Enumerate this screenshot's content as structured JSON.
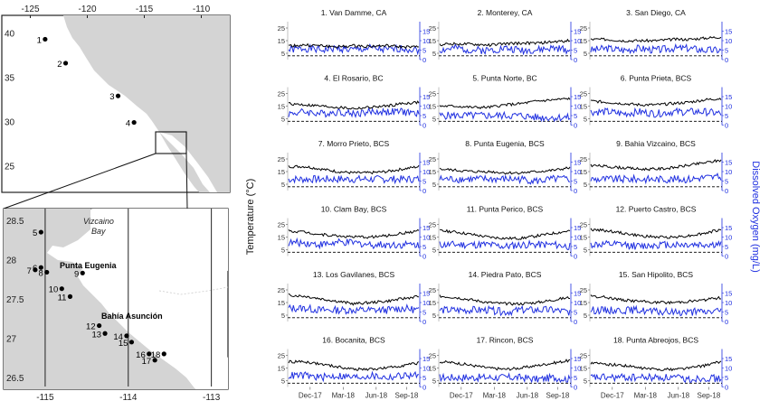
{
  "maps": {
    "top": {
      "lon_ticks": [
        "-125",
        "-120",
        "-115",
        "-110"
      ],
      "lat_ticks": [
        "40",
        "35",
        "30",
        "25"
      ],
      "sites": [
        {
          "label": "1",
          "lon": -123.7,
          "lat": 39.3
        },
        {
          "label": "2",
          "lon": -121.9,
          "lat": 36.6
        },
        {
          "label": "3",
          "lon": -117.3,
          "lat": 32.9
        },
        {
          "label": "4",
          "lon": -115.9,
          "lat": 29.9
        }
      ]
    },
    "bottom": {
      "lon_ticks": [
        "-115",
        "-114",
        "-113"
      ],
      "lat_ticks": [
        "28.5",
        "28",
        "27.5",
        "27",
        "26.5"
      ],
      "place_labels": {
        "vizcaino": "Vizcaino",
        "bay": "Bay",
        "punta_eugenia": "Punta Eugenia",
        "bahia_asuncion": "Bahía Asunción"
      },
      "sites": [
        {
          "label": "5",
          "lon": -115.05,
          "lat": 28.35
        },
        {
          "label": "6",
          "lon": -115.05,
          "lat": 27.9
        },
        {
          "label": "7",
          "lon": -115.12,
          "lat": 27.87
        },
        {
          "label": "8",
          "lon": -114.98,
          "lat": 27.84
        },
        {
          "label": "9",
          "lon": -114.55,
          "lat": 27.83
        },
        {
          "label": "10",
          "lon": -114.8,
          "lat": 27.63
        },
        {
          "label": "11",
          "lon": -114.7,
          "lat": 27.53
        },
        {
          "label": "12",
          "lon": -114.35,
          "lat": 27.16
        },
        {
          "label": "13",
          "lon": -114.28,
          "lat": 27.06
        },
        {
          "label": "14",
          "lon": -114.02,
          "lat": 27.03
        },
        {
          "label": "15",
          "lon": -113.96,
          "lat": 26.95
        },
        {
          "label": "16",
          "lon": -113.75,
          "lat": 26.8
        },
        {
          "label": "17",
          "lon": -113.68,
          "lat": 26.72
        },
        {
          "label": "18",
          "lon": -113.57,
          "lat": 26.8
        }
      ]
    }
  },
  "axis_labels": {
    "y_left": "Temperature (°C)",
    "y_right": "Dissolved Oxygen (mg/L)"
  },
  "chart_data": {
    "type": "line",
    "x_ticks": [
      "Dec-17",
      "Mar-18",
      "Jun-18",
      "Sep-18"
    ],
    "temp_ticks": [
      "25",
      "15",
      "5"
    ],
    "do_ticks": [
      "15",
      "10",
      "5",
      "0"
    ],
    "temp_ylim": [
      0,
      30
    ],
    "do_ylim": [
      0,
      20
    ],
    "hypoxia_threshold_mgL": 2,
    "colors": {
      "temperature": "#000000",
      "dissolved_oxygen": "#1f2fe0",
      "threshold": "#000000"
    },
    "panels": [
      {
        "title": "1. Van Damme, CA",
        "temp": [
          11,
          11.5,
          11,
          10,
          11,
          10.5,
          11,
          10,
          10
        ],
        "do": [
          5,
          6,
          5,
          6,
          5,
          6,
          5,
          6,
          5
        ]
      },
      {
        "title": "2. Monterey, CA",
        "temp": [
          12,
          12.5,
          12,
          11.5,
          12.5,
          13,
          13,
          14,
          15
        ],
        "do": [
          5,
          6,
          5,
          5,
          6,
          5,
          5,
          6,
          5
        ]
      },
      {
        "title": "3. San Diego, CA",
        "temp": [
          16,
          16,
          15,
          15,
          15,
          16,
          16,
          17,
          18
        ],
        "do": [
          5,
          6,
          5,
          6,
          5,
          6,
          6,
          5,
          5
        ]
      },
      {
        "title": "4. El Rosario, BC",
        "temp": [
          17,
          16,
          15,
          14,
          13,
          14,
          15,
          17,
          18
        ],
        "do": [
          6,
          7,
          6,
          7,
          6,
          7,
          7,
          7,
          6
        ]
      },
      {
        "title": "5. Punta Norte, BC",
        "temp": [
          15,
          15,
          14,
          14,
          16,
          17,
          19,
          20,
          21
        ],
        "do": [
          5,
          5,
          5,
          5,
          5,
          5,
          4,
          4,
          4
        ]
      },
      {
        "title": "6. Punta Prieta, BCS",
        "temp": [
          19,
          18,
          17,
          16,
          16,
          17,
          18,
          20,
          21
        ],
        "do": [
          7,
          7,
          6,
          7,
          6,
          7,
          7,
          7,
          6
        ]
      },
      {
        "title": "7. Morro Prieto, BCS",
        "temp": [
          19,
          19,
          17,
          15,
          14,
          14,
          15,
          17,
          19
        ],
        "do": [
          6,
          6,
          6,
          6,
          6,
          6,
          6,
          6,
          6
        ]
      },
      {
        "title": "8. Punta Eugenia, BCS",
        "temp": [
          17,
          16,
          15,
          15,
          14,
          14,
          15,
          16,
          18
        ],
        "do": [
          6,
          6,
          6,
          6,
          6,
          6,
          5,
          6,
          6
        ]
      },
      {
        "title": "9. Bahia Vizcaino, BCS",
        "temp": [
          20,
          19,
          18,
          17,
          17,
          18,
          20,
          22,
          24
        ],
        "do": [
          6,
          6,
          6,
          6,
          6,
          6,
          6,
          7,
          7
        ]
      },
      {
        "title": "10. Clam Bay, BCS",
        "temp": [
          20,
          19,
          17,
          16,
          15,
          15,
          16,
          18,
          20
        ],
        "do": [
          7,
          7,
          6,
          7,
          7,
          6,
          6,
          6,
          6
        ]
      },
      {
        "title": "11. Punta Perico, BCS",
        "temp": [
          20,
          19,
          17,
          15,
          14,
          14,
          16,
          18,
          20
        ],
        "do": [
          6,
          6,
          6,
          6,
          5,
          6,
          6,
          6,
          5
        ]
      },
      {
        "title": "12. Puerto Castro, BCS",
        "temp": [
          21,
          20,
          18,
          16,
          15,
          15,
          16,
          18,
          21
        ],
        "do": [
          6,
          6,
          6,
          5,
          6,
          6,
          6,
          6,
          6
        ]
      },
      {
        "title": "13. Los Gavilanes, BCS",
        "temp": [
          21,
          20,
          18,
          16,
          14,
          15,
          16,
          18,
          20
        ],
        "do": [
          7,
          7,
          6,
          6,
          6,
          6,
          6,
          7,
          6
        ]
      },
      {
        "title": "14. Piedra Pato, BCS",
        "temp": [
          20,
          19,
          17,
          15,
          14,
          14,
          15,
          17,
          19
        ],
        "do": [
          6,
          6,
          6,
          6,
          5,
          6,
          6,
          6,
          5
        ]
      },
      {
        "title": "15. San Hipolito, BCS",
        "temp": [
          20,
          19,
          17,
          16,
          15,
          15,
          16,
          17,
          19
        ],
        "do": [
          6,
          6,
          6,
          6,
          5,
          5,
          5,
          5,
          6
        ]
      },
      {
        "title": "16. Bocanita, BCS",
        "temp": [
          20,
          20,
          18,
          16,
          14,
          14,
          15,
          17,
          19
        ],
        "do": [
          6,
          6,
          5,
          6,
          5,
          6,
          5,
          6,
          6
        ]
      },
      {
        "title": "17. Rincon, BCS",
        "temp": [
          20,
          19,
          17,
          15,
          14,
          15,
          17,
          19,
          21
        ],
        "do": [
          5,
          5,
          5,
          5,
          5,
          5,
          4,
          5,
          4
        ]
      },
      {
        "title": "18. Punta Abreojos, BCS",
        "temp": [
          19,
          18,
          17,
          15,
          14,
          14,
          15,
          17,
          20
        ],
        "do": [
          5,
          5,
          5,
          5,
          5,
          5,
          4,
          5,
          4
        ]
      }
    ]
  }
}
